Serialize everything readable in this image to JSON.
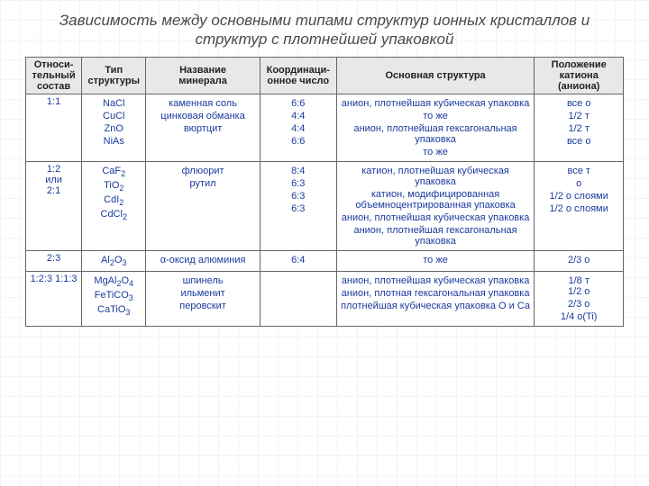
{
  "title": "Зависимость между основными типами структур ионных кристаллов и структур с плотнейшей упаковкой",
  "headers": {
    "ratio": "Относи-\nтельный\nсостав",
    "type": "Тип\nструктуры",
    "mineral": "Название\nминерала",
    "coord": "Координаци-\nонное число",
    "structure": "Основная структура",
    "position": "Положение\nкатиона\n(аниона)"
  },
  "groups": [
    {
      "ratio": "1:1",
      "rows": [
        {
          "type": "NaCl",
          "mineral": "каменная соль",
          "coord": "6:6",
          "structure": "анион, плотнейшая кубическая упаковка",
          "position": "все о"
        },
        {
          "type": "CuCl",
          "mineral": "цинковая обманка",
          "coord": "4:4",
          "structure": "то же",
          "position": "1/2 т"
        },
        {
          "type": "ZnO",
          "mineral": "вюртцит",
          "coord": "4:4",
          "structure": "анион, плотнейшая гексагональная упаковка",
          "position": "1/2 т"
        },
        {
          "type": "NiAs",
          "mineral": "",
          "coord": "6:6",
          "structure": "то же",
          "position": "все о"
        }
      ]
    },
    {
      "ratio": "1:2\nили\n2:1",
      "rows": [
        {
          "type": "CaF2",
          "mineral": "флюорит",
          "coord": "8:4",
          "structure": "катион, плотнейшая кубическая упаковка",
          "position": "все т"
        },
        {
          "type": "TiO2",
          "mineral": "рутил",
          "coord": "6:3",
          "structure": "катион, модифицированная объемноцентрированная упаковка",
          "position": "о"
        },
        {
          "type": "CdI2",
          "mineral": "",
          "coord": "6:3",
          "structure": "анион, плотнейшая кубическая упаковка",
          "position": "1/2 о слоями"
        },
        {
          "type": "CdCl2",
          "mineral": "",
          "coord": "6:3",
          "structure": "анион, плотнейшая гексагональная упаковка",
          "position": "1/2 о слоями"
        }
      ]
    },
    {
      "ratio": "2:3",
      "rows": [
        {
          "type": "Al2O3",
          "mineral": "α-оксид алюминия",
          "coord": "6:4",
          "structure": "то же",
          "position": "2/3 о"
        }
      ]
    },
    {
      "ratio": "1:2:3 1:1:3",
      "rows": [
        {
          "type": "MgAl2O4",
          "mineral": "шпинель",
          "coord": "",
          "structure": "анион, плотнейшая кубическая упаковка",
          "position": "1/8 т\n1/2 о"
        },
        {
          "type": "FeTiCO3",
          "mineral": "ильменит",
          "coord": "",
          "structure": "анион, плотная гексагональная упаковка",
          "position": "2/3 о"
        },
        {
          "type": "CaTiO3",
          "mineral": "перовскит",
          "coord": "",
          "structure": "плотнейшая кубическая упаковка О и Са",
          "position": "1/4 о(Ti)"
        }
      ]
    }
  ],
  "style": {
    "title_color": "#4a4a4a",
    "header_bg": "#e8e8e8",
    "cell_text_color": "#1a3a9e",
    "border_color": "#666666",
    "background": "#ffffff",
    "font_family": "Arial, sans-serif",
    "title_fontsize": 17,
    "cell_fontsize": 11
  }
}
